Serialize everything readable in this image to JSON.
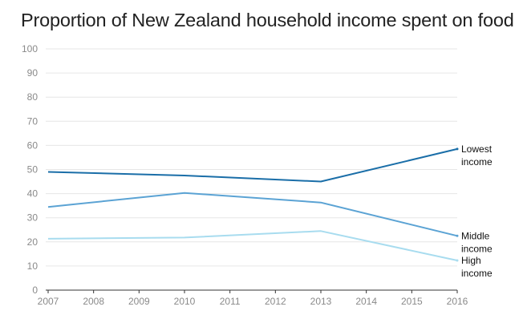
{
  "title": "Proportion of New Zealand household income spent on food",
  "chart_data": {
    "type": "line",
    "title": "Proportion of New Zealand household income spent on food",
    "x": [
      "2007",
      "2008",
      "2009",
      "2010",
      "2011",
      "2012",
      "2013",
      "2014",
      "2015",
      "2016"
    ],
    "y_ticks": [
      "0",
      "10",
      "20",
      "30",
      "40",
      "50",
      "60",
      "70",
      "80",
      "90",
      "100"
    ],
    "ylim": [
      0,
      100
    ],
    "grid": true,
    "series": [
      {
        "name": "Lowest income",
        "label_lines": [
          "Lowest",
          "income"
        ],
        "color": "#1a6ea8",
        "points": [
          [
            2007,
            49
          ],
          [
            2010,
            47.5
          ],
          [
            2013,
            45
          ],
          [
            2016,
            58.5
          ]
        ]
      },
      {
        "name": "Middle income",
        "label_lines": [
          "Middle",
          "income"
        ],
        "color": "#5ba3d4",
        "points": [
          [
            2007,
            34.5
          ],
          [
            2010,
            40.3
          ],
          [
            2013,
            36.3
          ],
          [
            2016,
            22.5
          ]
        ]
      },
      {
        "name": "High income",
        "label_lines": [
          "High",
          "income"
        ],
        "color": "#a8dcef",
        "points": [
          [
            2007,
            21.3
          ],
          [
            2010,
            21.8
          ],
          [
            2013,
            24.5
          ],
          [
            2016,
            12.3
          ]
        ]
      }
    ]
  }
}
